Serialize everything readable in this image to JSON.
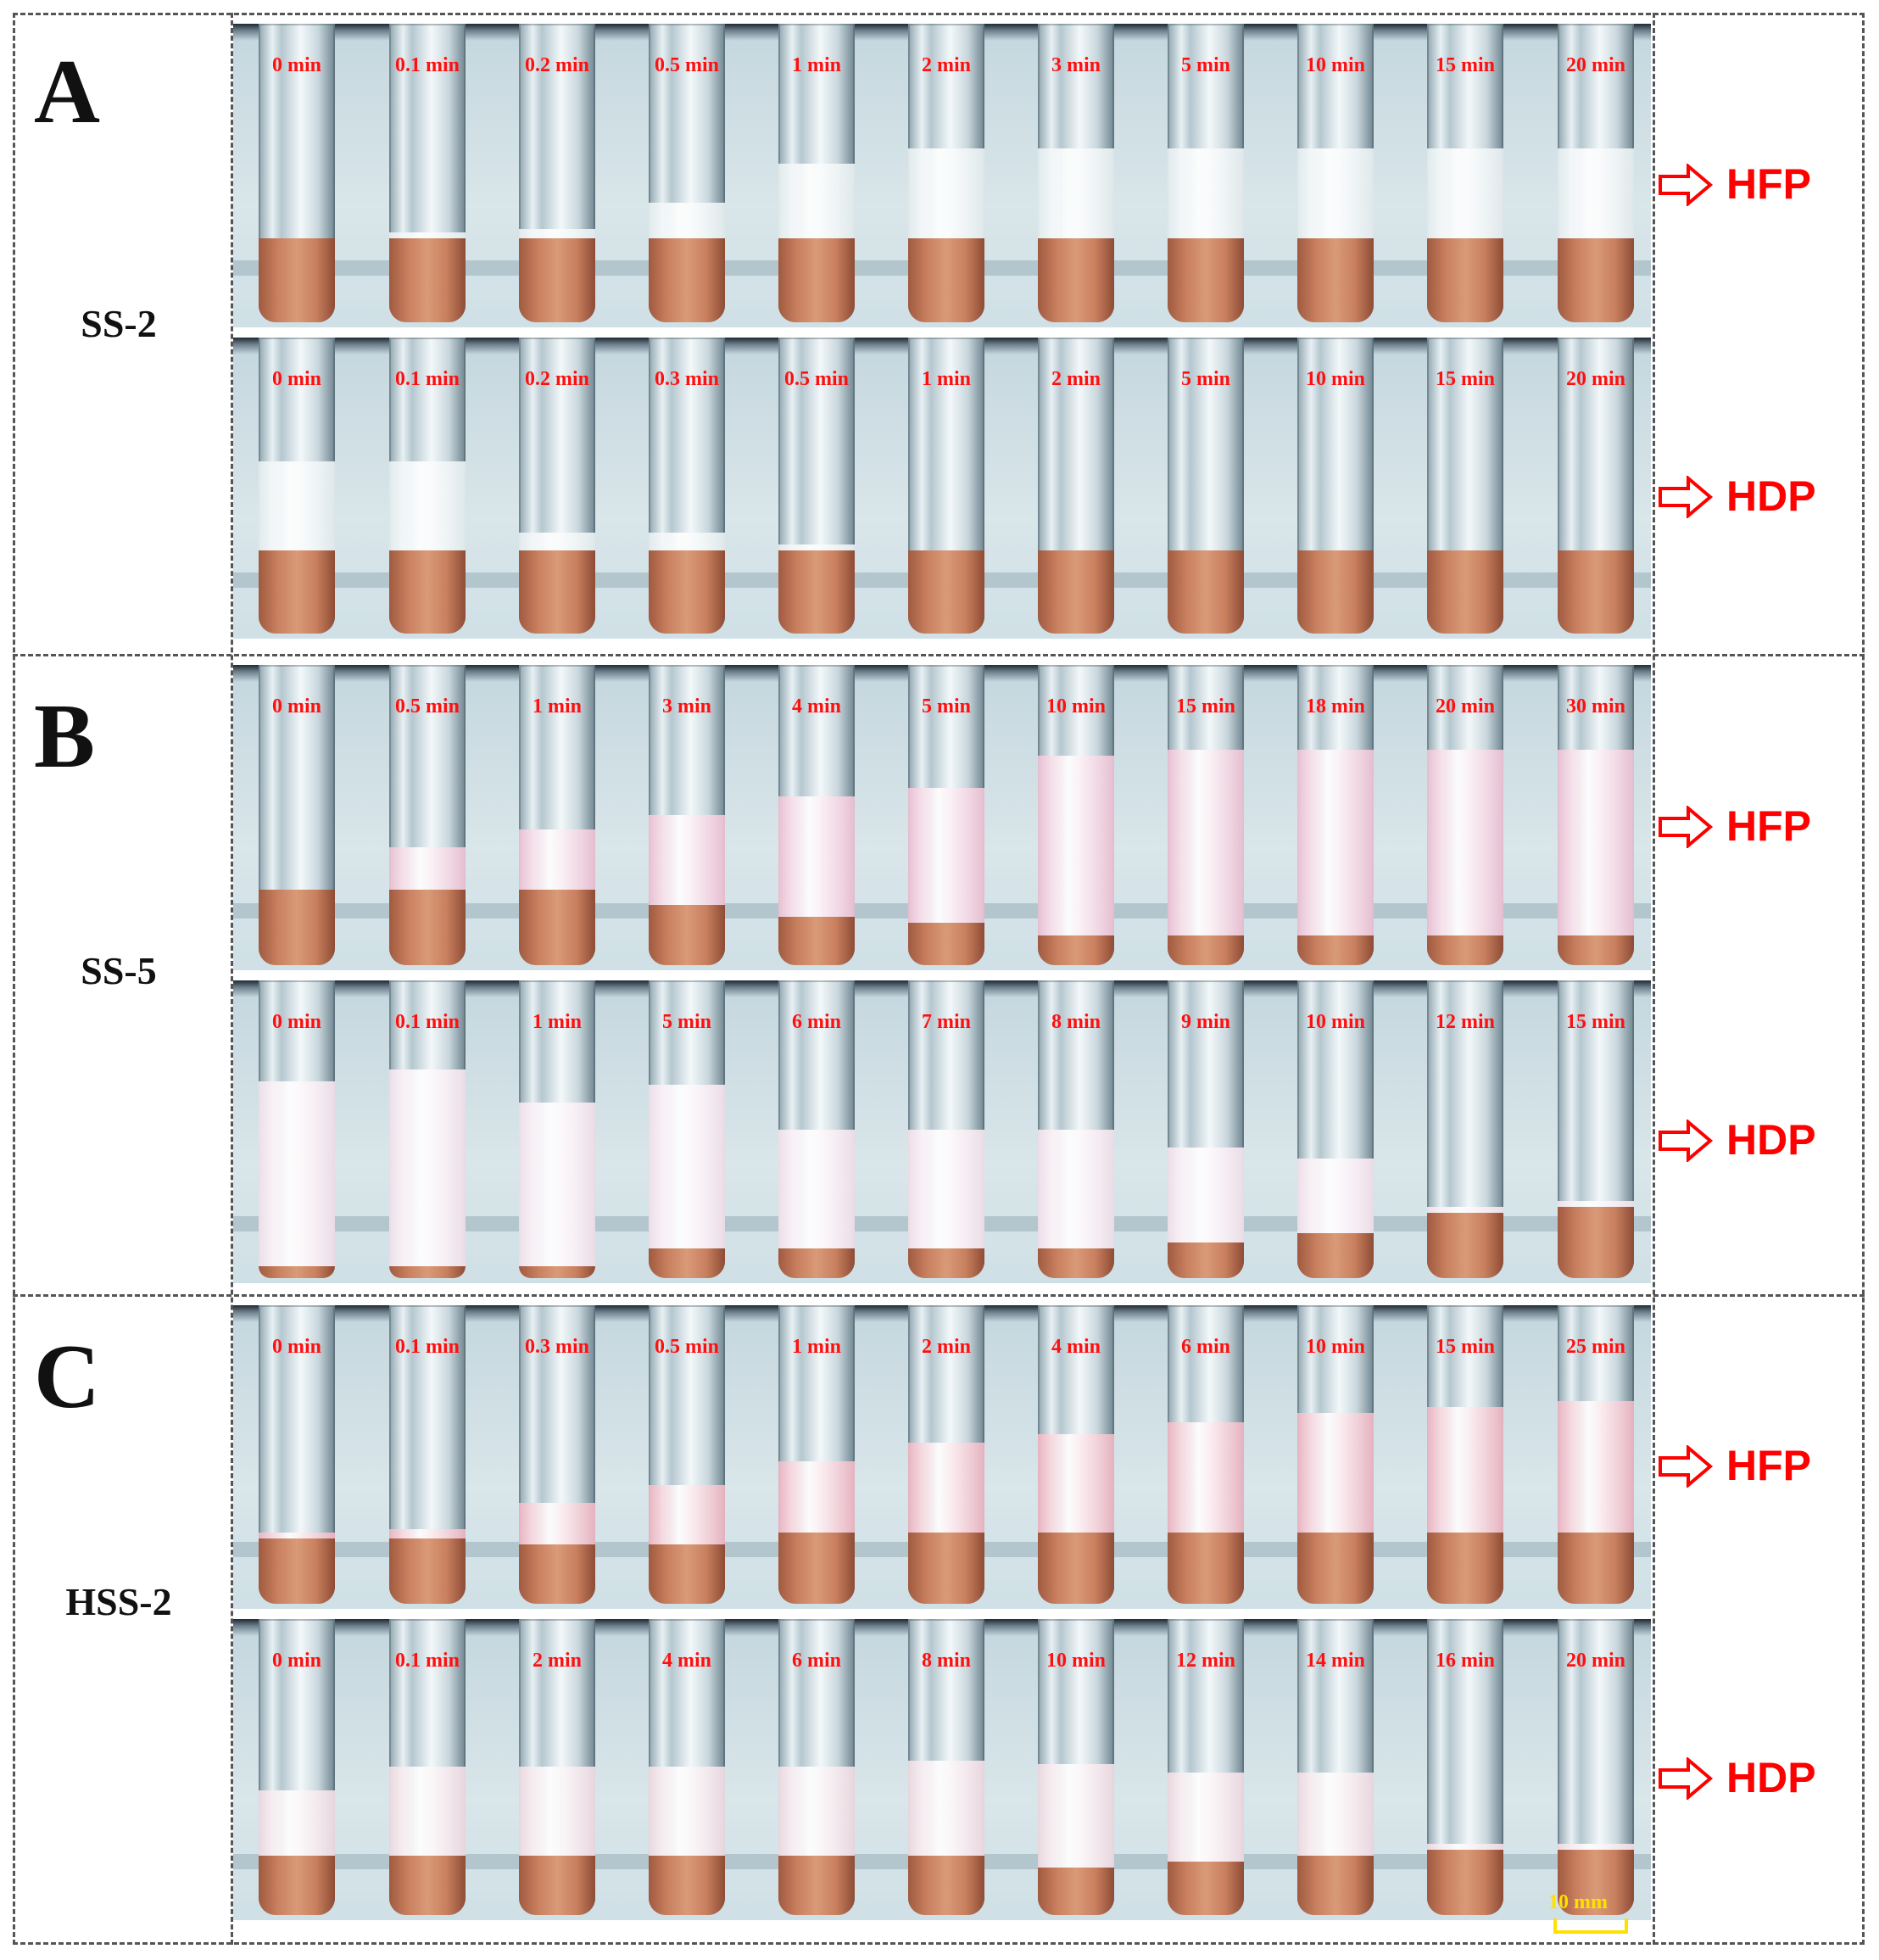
{
  "panels": [
    {
      "letter": "A",
      "sample": "SS-2",
      "rows": [
        {
          "gas": "HFP",
          "times": [
            "0 min",
            "0.1 min",
            "0.2 min",
            "0.5 min",
            "1 min",
            "2 min",
            "3 min",
            "5 min",
            "10 min",
            "15 min",
            "20 min"
          ],
          "foam_fraction": [
            0,
            0.02,
            0.03,
            0.12,
            0.25,
            0.3,
            0.3,
            0.3,
            0.3,
            0.3,
            0.3
          ],
          "liquid_fraction": [
            0.28,
            0.28,
            0.28,
            0.28,
            0.28,
            0.28,
            0.28,
            0.28,
            0.28,
            0.28,
            0.28
          ],
          "foam_color": "#e8f0f2"
        },
        {
          "gas": "HDP",
          "times": [
            "0 min",
            "0.1 min",
            "0.2 min",
            "0.3 min",
            "0.5 min",
            "1 min",
            "2 min",
            "5 min",
            "10 min",
            "15 min",
            "20 min"
          ],
          "foam_fraction": [
            0.3,
            0.3,
            0.06,
            0.06,
            0.02,
            0,
            0,
            0,
            0,
            0,
            0
          ],
          "liquid_fraction": [
            0.28,
            0.28,
            0.28,
            0.28,
            0.28,
            0.28,
            0.28,
            0.28,
            0.28,
            0.28,
            0.28
          ],
          "foam_color": "#e8f0f2"
        }
      ]
    },
    {
      "letter": "B",
      "sample": "SS-5",
      "rows": [
        {
          "gas": "HFP",
          "times": [
            "0 min",
            "0.5 min",
            "1 min",
            "3 min",
            "4 min",
            "5 min",
            "10 min",
            "15 min",
            "18 min",
            "20 min",
            "30 min"
          ],
          "foam_fraction": [
            0,
            0.14,
            0.2,
            0.3,
            0.4,
            0.45,
            0.6,
            0.62,
            0.62,
            0.62,
            0.62
          ],
          "liquid_fraction": [
            0.25,
            0.25,
            0.25,
            0.2,
            0.16,
            0.14,
            0.1,
            0.1,
            0.1,
            0.1,
            0.1
          ],
          "foam_color": "#efc3d6"
        },
        {
          "gas": "HDP",
          "times": [
            "0 min",
            "0.1 min",
            "1 min",
            "5 min",
            "6 min",
            "7 min",
            "8 min",
            "9 min",
            "10 min",
            "12 min",
            "15 min"
          ],
          "foam_fraction": [
            0.62,
            0.66,
            0.55,
            0.55,
            0.4,
            0.4,
            0.4,
            0.32,
            0.25,
            0.02,
            0.02
          ],
          "liquid_fraction": [
            0.04,
            0.04,
            0.04,
            0.1,
            0.1,
            0.1,
            0.1,
            0.12,
            0.15,
            0.22,
            0.24
          ],
          "foam_color": "#f5e4ee"
        }
      ]
    },
    {
      "letter": "C",
      "sample": "HSS-2",
      "rows": [
        {
          "gas": "HFP",
          "times": [
            "0 min",
            "0.1 min",
            "0.3 min",
            "0.5 min",
            "1 min",
            "2 min",
            "4 min",
            "6 min",
            "10 min",
            "15 min",
            "25 min"
          ],
          "foam_fraction": [
            0.02,
            0.03,
            0.14,
            0.2,
            0.24,
            0.3,
            0.33,
            0.37,
            0.4,
            0.42,
            0.44
          ],
          "liquid_fraction": [
            0.22,
            0.22,
            0.2,
            0.2,
            0.24,
            0.24,
            0.24,
            0.24,
            0.24,
            0.24,
            0.24
          ],
          "foam_color": "#efb7c4"
        },
        {
          "gas": "HDP",
          "times": [
            "0 min",
            "0.1 min",
            "2 min",
            "4 min",
            "6 min",
            "8 min",
            "10 min",
            "12 min",
            "14 min",
            "16 min",
            "20 min"
          ],
          "foam_fraction": [
            0.22,
            0.3,
            0.3,
            0.3,
            0.3,
            0.32,
            0.35,
            0.3,
            0.28,
            0.02,
            0.02
          ],
          "liquid_fraction": [
            0.2,
            0.2,
            0.2,
            0.2,
            0.2,
            0.2,
            0.16,
            0.18,
            0.2,
            0.22,
            0.22
          ],
          "foam_color": "#f1dde4"
        }
      ]
    }
  ],
  "scale_bar": {
    "label": "10 mm",
    "color": "#ffe000"
  },
  "colors": {
    "time_label": "#ff1010",
    "gas_label": "#ff0000",
    "liquid": "#c9805f",
    "border": "#555555"
  }
}
